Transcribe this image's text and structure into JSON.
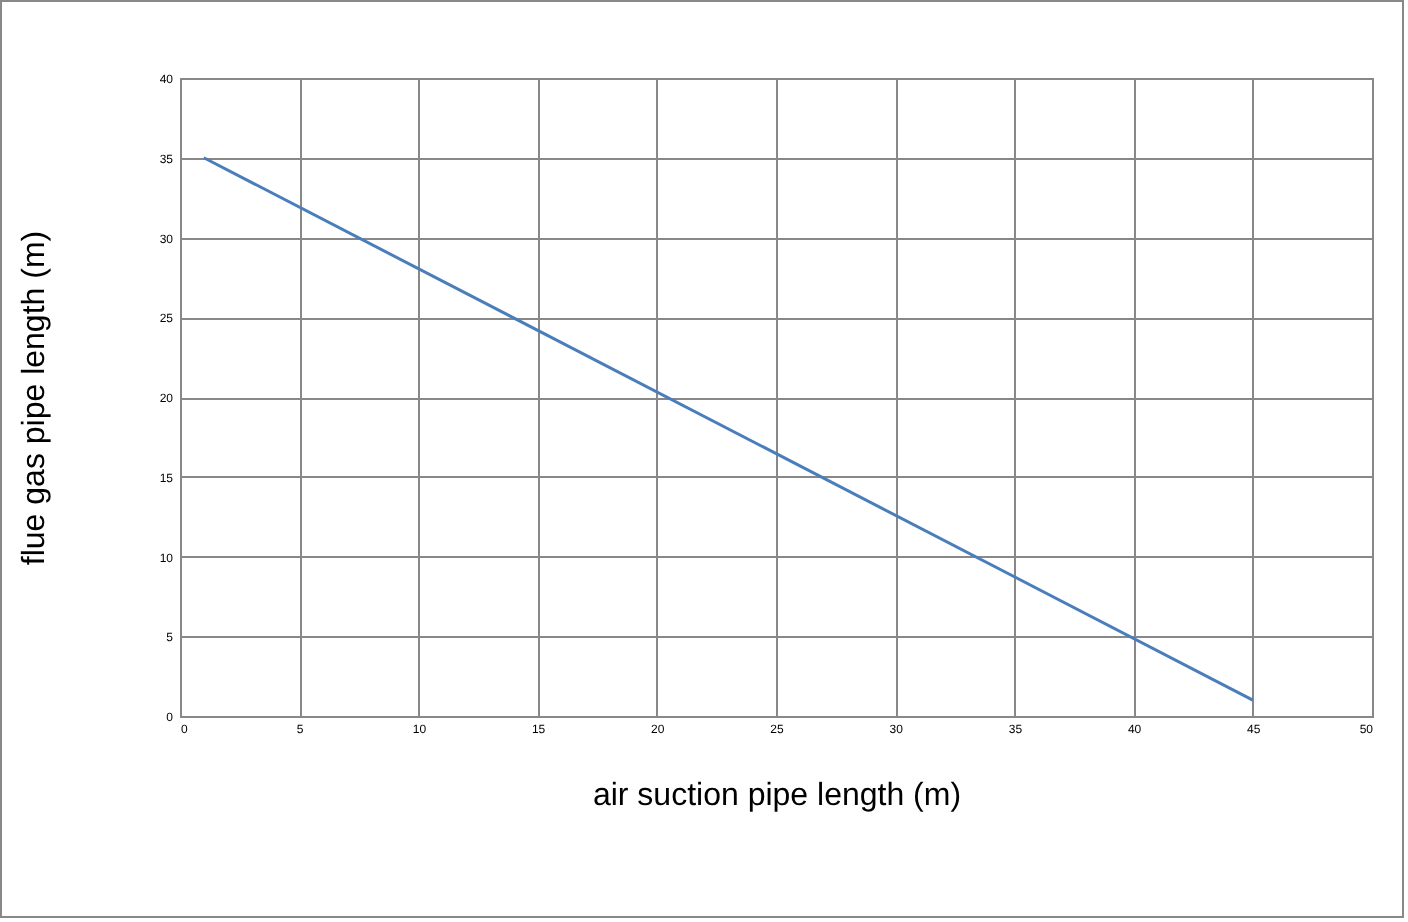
{
  "chart_data": {
    "type": "line",
    "xlabel": "air suction pipe length (m)",
    "ylabel": "flue gas pipe length (m)",
    "x": [
      1,
      45
    ],
    "series": [
      {
        "color": "#4a7ebb",
        "values": [
          35,
          1
        ]
      }
    ],
    "xlim": [
      0,
      50
    ],
    "xticks": [
      0,
      5,
      10,
      15,
      20,
      25,
      30,
      35,
      40,
      45,
      50
    ],
    "ylim": [
      0,
      40
    ],
    "yticks": [
      0,
      5,
      10,
      15,
      20,
      25,
      30,
      35,
      40
    ],
    "grid": true,
    "legend": false,
    "marker": "none",
    "line_style": "solid"
  }
}
